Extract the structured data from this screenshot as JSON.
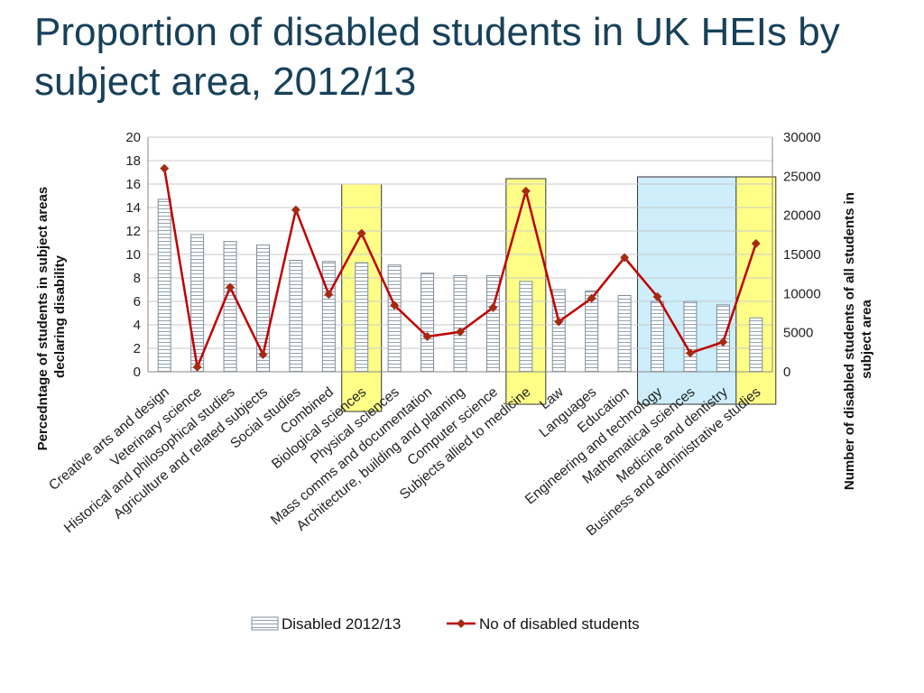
{
  "slide": {
    "title": "Proportion of disabled students in UK HEIs by subject area, 2012/13"
  },
  "colors": {
    "title": "#17415a",
    "bar_fill": "#ffffff",
    "bar_stroke": "#7f8c99",
    "line": "#c00000",
    "marker": "#a52a12",
    "highlight_yellow": "#ffff88",
    "highlight_blue": "#cdeefa"
  },
  "chart_data": {
    "type": "bar",
    "secondary_type": "line",
    "categories": [
      "Creative arts and design",
      "Veterinary science",
      "Historical and philosophical studies",
      "Agriculture and related subjects",
      "Social studies",
      "Combined",
      "Biological sciences",
      "Physical sciences",
      "Mass comms and documentation",
      "Architecture, building and planning",
      "Computer science",
      "Subjects allied to medicine",
      "Law",
      "Languages",
      "Education",
      "Engineering and technology",
      "Mathematical sciences",
      "Medicine and dentistry",
      "Business and administrative studies"
    ],
    "series": [
      {
        "name": "Disabled 2012/13",
        "type": "bar",
        "axis": "left",
        "values": [
          14.7,
          11.7,
          11.1,
          10.8,
          9.5,
          9.4,
          9.3,
          9.1,
          8.4,
          8.2,
          8.2,
          7.7,
          7.0,
          6.9,
          6.5,
          6.0,
          6.0,
          5.7,
          4.6
        ]
      },
      {
        "name": "No of disabled students",
        "type": "line",
        "axis": "right",
        "values": [
          26000,
          600,
          10800,
          2200,
          20700,
          9900,
          17700,
          8500,
          4500,
          5100,
          8200,
          23100,
          6400,
          9400,
          14600,
          9600,
          2400,
          3800,
          16400
        ]
      }
    ],
    "ylabel": "Percedntage of students in subject areas declaring disability",
    "y2label": "Number of disabled students of all students in subject area",
    "ylim": [
      0,
      20
    ],
    "y2lim": [
      0,
      30000
    ],
    "yticks": [
      "0",
      "2",
      "4",
      "6",
      "8",
      "10",
      "12",
      "14",
      "16",
      "18",
      "20"
    ],
    "y2ticks": [
      "0",
      "5000",
      "10000",
      "15000",
      "20000",
      "25000",
      "30000"
    ],
    "grid": true,
    "legend": "bottom",
    "highlights": [
      {
        "type": "box",
        "color": "yellow",
        "categories": [
          "Biological sciences"
        ]
      },
      {
        "type": "box",
        "color": "yellow",
        "categories": [
          "Subjects allied to medicine"
        ]
      },
      {
        "type": "box",
        "color": "blue",
        "categories": [
          "Engineering and technology",
          "Mathematical sciences",
          "Medicine and dentistry"
        ]
      },
      {
        "type": "box",
        "color": "yellow",
        "categories": [
          "Business and administrative studies"
        ]
      }
    ]
  }
}
